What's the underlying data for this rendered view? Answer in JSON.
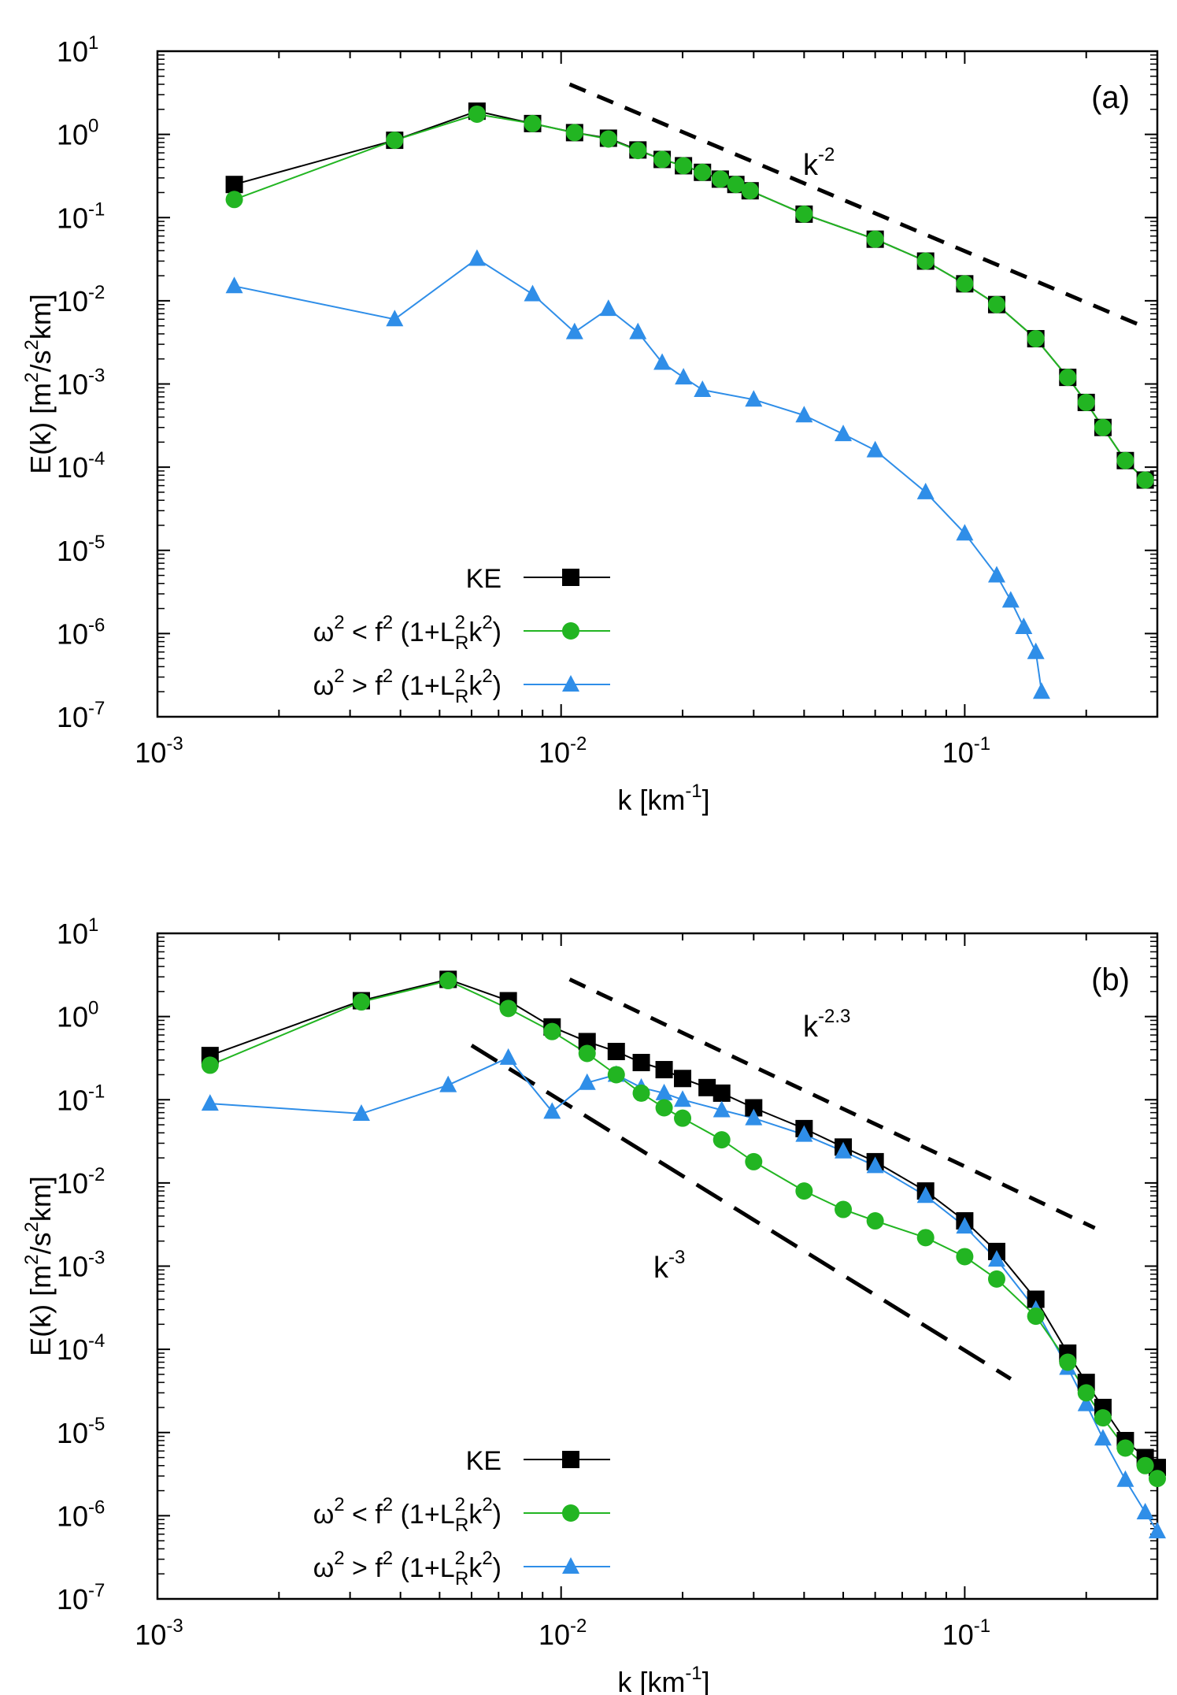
{
  "chart_data": [
    {
      "panel": "(a)",
      "type": "line",
      "xlabel": "k [km",
      "xlabel_sup": "-1",
      "xlabel_end": "]",
      "ylabel": "E(k) [m",
      "ylabel_parts": [
        "E(k) [m",
        "2",
        "/s",
        "2",
        "km]"
      ],
      "xscale": "log",
      "yscale": "log",
      "xlim": [
        0.001,
        0.3
      ],
      "ylim": [
        1e-07,
        10
      ],
      "xticks": [
        {
          "base": "10",
          "exp": "-3",
          "value": 0.001
        },
        {
          "base": "10",
          "exp": "-2",
          "value": 0.01
        },
        {
          "base": "10",
          "exp": "-1",
          "value": 0.1
        }
      ],
      "yticks": [
        {
          "base": "10",
          "exp": "1",
          "value": 10
        },
        {
          "base": "10",
          "exp": "0",
          "value": 1
        },
        {
          "base": "10",
          "exp": "-1",
          "value": 0.1
        },
        {
          "base": "10",
          "exp": "-2",
          "value": 0.01
        },
        {
          "base": "10",
          "exp": "-3",
          "value": 0.001
        },
        {
          "base": "10",
          "exp": "-4",
          "value": 0.0001
        },
        {
          "base": "10",
          "exp": "-5",
          "value": 1e-05
        },
        {
          "base": "10",
          "exp": "-6",
          "value": 1e-06
        },
        {
          "base": "10",
          "exp": "-7",
          "value": 1e-07
        }
      ],
      "legend_position": "bottom-center",
      "series": [
        {
          "key": "ke",
          "marker": "square",
          "color": "#000000",
          "x": [
            0.00155,
            0.00387,
            0.00619,
            0.0085,
            0.0108,
            0.0131,
            0.0155,
            0.0178,
            0.0201,
            0.0224,
            0.0248,
            0.0271,
            0.0294,
            0.04,
            0.06,
            0.08,
            0.1,
            0.12,
            0.15,
            0.18,
            0.2,
            0.22,
            0.25,
            0.28
          ],
          "y": [
            0.25,
            0.85,
            1.9,
            1.35,
            1.05,
            0.9,
            0.65,
            0.5,
            0.42,
            0.35,
            0.29,
            0.25,
            0.21,
            0.11,
            0.055,
            0.03,
            0.016,
            0.009,
            0.0035,
            0.0012,
            0.0006,
            0.0003,
            0.00012,
            7e-05
          ]
        },
        {
          "key": "slow",
          "marker": "circle",
          "color": "#22b522",
          "x": [
            0.00155,
            0.00387,
            0.00619,
            0.0085,
            0.0108,
            0.0131,
            0.0155,
            0.0178,
            0.0201,
            0.0224,
            0.0248,
            0.0271,
            0.0294,
            0.04,
            0.06,
            0.08,
            0.1,
            0.12,
            0.15,
            0.18,
            0.2,
            0.22,
            0.25,
            0.28
          ],
          "y": [
            0.165,
            0.85,
            1.75,
            1.35,
            1.05,
            0.88,
            0.64,
            0.5,
            0.42,
            0.35,
            0.29,
            0.25,
            0.21,
            0.11,
            0.055,
            0.03,
            0.016,
            0.009,
            0.0035,
            0.0012,
            0.0006,
            0.0003,
            0.00012,
            7e-05
          ]
        },
        {
          "key": "fast",
          "marker": "triangle",
          "color": "#2f8ee8",
          "x": [
            0.00155,
            0.00387,
            0.00619,
            0.0085,
            0.0108,
            0.0131,
            0.0155,
            0.0178,
            0.0201,
            0.0224,
            0.03,
            0.04,
            0.05,
            0.06,
            0.08,
            0.1,
            0.12,
            0.13,
            0.14,
            0.15,
            0.155
          ],
          "y": [
            0.015,
            0.006,
            0.032,
            0.012,
            0.0042,
            0.008,
            0.0042,
            0.0018,
            0.0012,
            0.00085,
            0.00065,
            0.00042,
            0.00025,
            0.00016,
            5e-05,
            1.6e-05,
            5e-06,
            2.5e-06,
            1.2e-06,
            6e-07,
            2e-07
          ]
        }
      ],
      "ref_lines": [
        {
          "label_base": "k",
          "label_exp": "-2",
          "x1": 0.0105,
          "y1": 4.0,
          "x2": 0.28,
          "y2": 0.0048,
          "dash": "medium"
        }
      ]
    },
    {
      "panel": "(b)",
      "type": "line",
      "xlabel": "k [km",
      "xlabel_sup": "-1",
      "xlabel_end": "]",
      "ylabel_parts": [
        "E(k) [m",
        "2",
        "/s",
        "2",
        "km]"
      ],
      "xscale": "log",
      "yscale": "log",
      "xlim": [
        0.001,
        0.3
      ],
      "ylim": [
        1e-07,
        10
      ],
      "xticks": [
        {
          "base": "10",
          "exp": "-3",
          "value": 0.001
        },
        {
          "base": "10",
          "exp": "-2",
          "value": 0.01
        },
        {
          "base": "10",
          "exp": "-1",
          "value": 0.1
        }
      ],
      "yticks": [
        {
          "base": "10",
          "exp": "1",
          "value": 10
        },
        {
          "base": "10",
          "exp": "0",
          "value": 1
        },
        {
          "base": "10",
          "exp": "-1",
          "value": 0.1
        },
        {
          "base": "10",
          "exp": "-2",
          "value": 0.01
        },
        {
          "base": "10",
          "exp": "-3",
          "value": 0.001
        },
        {
          "base": "10",
          "exp": "-4",
          "value": 0.0001
        },
        {
          "base": "10",
          "exp": "-5",
          "value": 1e-05
        },
        {
          "base": "10",
          "exp": "-6",
          "value": 1e-06
        },
        {
          "base": "10",
          "exp": "-7",
          "value": 1e-07
        }
      ],
      "legend_position": "bottom-center",
      "series": [
        {
          "key": "ke",
          "marker": "square",
          "color": "#000000",
          "x": [
            0.00135,
            0.0032,
            0.00525,
            0.0074,
            0.0095,
            0.0116,
            0.0137,
            0.0158,
            0.018,
            0.02,
            0.023,
            0.025,
            0.03,
            0.04,
            0.05,
            0.06,
            0.08,
            0.1,
            0.12,
            0.15,
            0.18,
            0.2,
            0.22,
            0.25,
            0.28,
            0.3
          ],
          "y": [
            0.34,
            1.55,
            2.8,
            1.55,
            0.75,
            0.5,
            0.38,
            0.28,
            0.23,
            0.18,
            0.14,
            0.12,
            0.08,
            0.045,
            0.027,
            0.018,
            0.008,
            0.0035,
            0.0015,
            0.0004,
            9e-05,
            4e-05,
            2e-05,
            8e-06,
            5e-06,
            3.8e-06
          ]
        },
        {
          "key": "slow",
          "marker": "circle",
          "color": "#22b522",
          "x": [
            0.00135,
            0.0032,
            0.00525,
            0.0074,
            0.0095,
            0.0116,
            0.0137,
            0.0158,
            0.018,
            0.02,
            0.025,
            0.03,
            0.04,
            0.05,
            0.06,
            0.08,
            0.1,
            0.12,
            0.15,
            0.18,
            0.2,
            0.22,
            0.25,
            0.28,
            0.3
          ],
          "y": [
            0.26,
            1.5,
            2.7,
            1.25,
            0.66,
            0.36,
            0.2,
            0.12,
            0.08,
            0.06,
            0.033,
            0.018,
            0.008,
            0.0048,
            0.0035,
            0.0022,
            0.0013,
            0.0007,
            0.00025,
            7e-05,
            3e-05,
            1.5e-05,
            6.5e-06,
            4e-06,
            2.8e-06
          ]
        },
        {
          "key": "fast",
          "marker": "triangle",
          "color": "#2f8ee8",
          "x": [
            0.00135,
            0.0032,
            0.00525,
            0.0074,
            0.0095,
            0.0116,
            0.0137,
            0.0158,
            0.018,
            0.02,
            0.025,
            0.03,
            0.04,
            0.05,
            0.06,
            0.08,
            0.1,
            0.12,
            0.15,
            0.18,
            0.2,
            0.22,
            0.25,
            0.28,
            0.3
          ],
          "y": [
            0.09,
            0.068,
            0.15,
            0.32,
            0.072,
            0.16,
            0.2,
            0.14,
            0.12,
            0.1,
            0.075,
            0.06,
            0.038,
            0.024,
            0.016,
            0.007,
            0.003,
            0.0012,
            0.0003,
            6e-05,
            2.2e-05,
            8.5e-06,
            2.7e-06,
            1.1e-06,
            6.5e-07
          ]
        }
      ],
      "ref_lines": [
        {
          "label_base": "k",
          "label_exp": "-2.3",
          "x1": 0.0105,
          "y1": 2.8,
          "x2": 0.21,
          "y2": 0.00287,
          "dash": "medium"
        },
        {
          "label_base": "k",
          "label_exp": "-3",
          "x1": 0.006,
          "y1": 0.45,
          "x2": 0.13,
          "y2": 4.42e-05,
          "dash": "long"
        }
      ]
    }
  ],
  "legend": {
    "ke_label": "KE",
    "slow_label_parts": [
      "ω",
      "2",
      " < f",
      "2",
      " (1+L",
      "2",
      "R",
      "k",
      "2",
      ")"
    ],
    "fast_label_parts": [
      "ω",
      "2",
      " > f",
      "2",
      " (1+L",
      "2",
      "R",
      "k",
      "2",
      ")"
    ]
  }
}
